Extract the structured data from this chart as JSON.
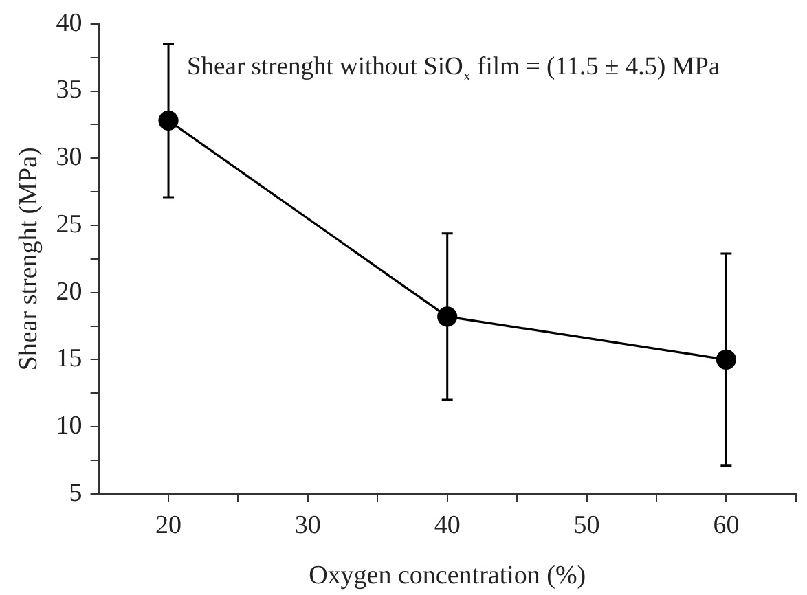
{
  "chart_data": {
    "type": "line",
    "xlabel": "Oxygen concentration (%)",
    "ylabel": "Shear strenght (MPa)",
    "annotations": [
      "Shear strenght without SiO$_{x}$ film = (11.5 ± 4.5) MPa"
    ],
    "x": [
      20,
      40,
      60
    ],
    "series": [
      {
        "color": "#000000",
        "values": [
          32.8,
          18.2,
          15.0
        ],
        "errors": [
          5.7,
          6.2,
          7.9
        ]
      }
    ],
    "xlim": [
      15,
      65
    ],
    "xticks": [
      20,
      {
        "value": 25,
        "label": null
      },
      30,
      {
        "value": 35,
        "label": null
      },
      40,
      {
        "value": 45,
        "label": null
      },
      50,
      {
        "value": 55,
        "label": null
      },
      60,
      {
        "value": 65,
        "label": null
      }
    ],
    "ylim": [
      5,
      40
    ],
    "yticks": [
      5,
      {
        "value": 7.5,
        "label": null
      },
      10,
      {
        "value": 12.5,
        "label": null
      },
      15,
      {
        "value": 17.5,
        "label": null
      },
      20,
      {
        "value": 22.5,
        "label": null
      },
      25,
      {
        "value": 27.5,
        "label": null
      },
      30,
      {
        "value": 32.5,
        "label": null
      },
      35,
      {
        "value": 37.5,
        "label": null
      },
      40
    ],
    "grid": false,
    "legend": false,
    "marker": "circle",
    "line_style": "solid"
  }
}
